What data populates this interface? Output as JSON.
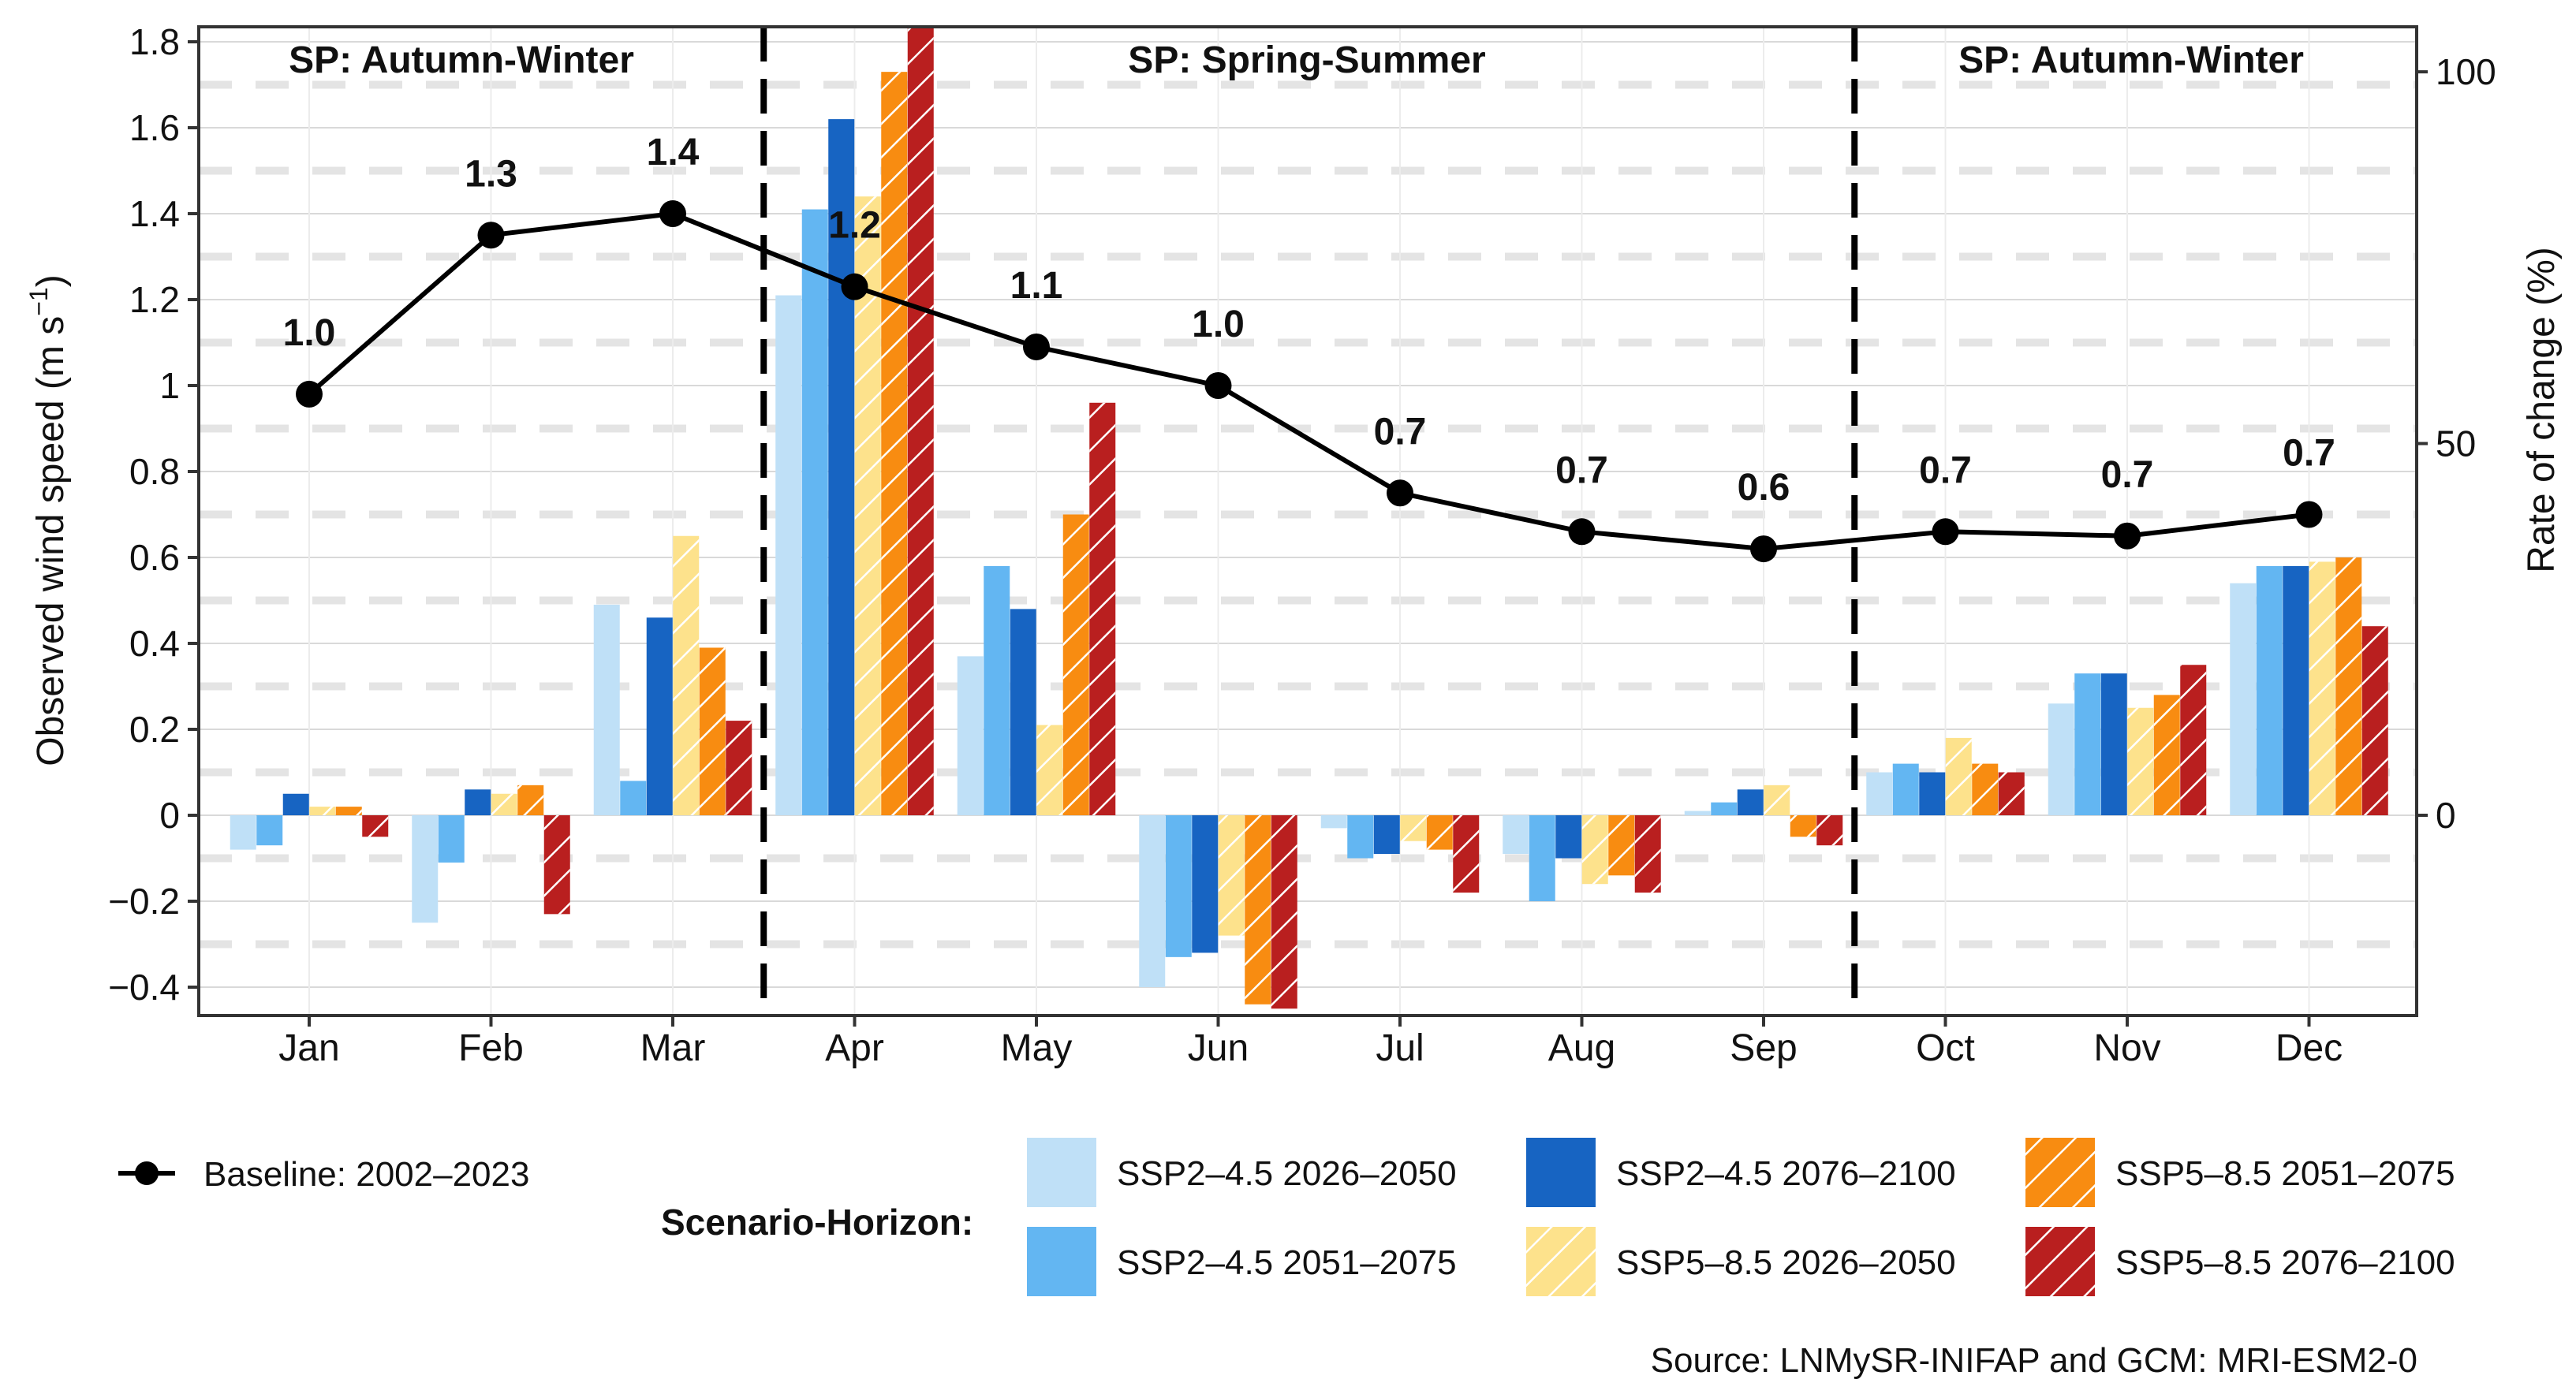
{
  "chart_data": {
    "type": "bar+line",
    "left_axis": {
      "label": "Observed wind speed (m s",
      "label_unit_sup": "−1",
      "label_close": ")",
      "ylim": [
        -0.45,
        1.85
      ],
      "ticks": [
        -0.4,
        -0.2,
        0,
        0.2,
        0.4,
        0.6,
        0.8,
        1,
        1.2,
        1.4,
        1.6,
        1.8
      ],
      "tick_labels": [
        "−0.4",
        "−0.2",
        "0",
        "0.2",
        "0.4",
        "0.6",
        "0.8",
        "1",
        "1.2",
        "1.4",
        "1.6",
        "1.8"
      ]
    },
    "right_axis": {
      "label": "Rate of change (%)",
      "ticks": [
        0,
        50,
        100
      ],
      "tick_labels": [
        "0",
        "50",
        "100"
      ],
      "scale_pct_per_ms": 57.8
    },
    "categories": [
      "Jan",
      "Feb",
      "Mar",
      "Apr",
      "May",
      "Jun",
      "Jul",
      "Aug",
      "Sep",
      "Oct",
      "Nov",
      "Dec"
    ],
    "baseline": {
      "name": "Baseline: 2002–2023",
      "values": [
        0.98,
        1.35,
        1.4,
        1.23,
        1.09,
        1.0,
        0.75,
        0.66,
        0.62,
        0.66,
        0.65,
        0.7
      ],
      "labels": [
        "1.0",
        "1.3",
        "1.4",
        "1.2",
        "1.1",
        "1.0",
        "0.7",
        "0.7",
        "0.6",
        "0.7",
        "0.7",
        "0.7"
      ]
    },
    "series": [
      {
        "name": "SSP2–4.5 2026–2050",
        "color": "#bfe0f7",
        "hatch": false,
        "values": [
          -0.08,
          -0.25,
          0.49,
          1.21,
          0.37,
          -0.4,
          -0.03,
          -0.09,
          0.01,
          0.1,
          0.26,
          0.54
        ]
      },
      {
        "name": "SSP2–4.5 2051–2075",
        "color": "#63b6f2",
        "hatch": false,
        "values": [
          -0.07,
          -0.11,
          0.08,
          1.41,
          0.58,
          -0.33,
          -0.1,
          -0.2,
          0.03,
          0.12,
          0.33,
          0.58
        ]
      },
      {
        "name": "SSP2–4.5 2076–2100",
        "color": "#1764c2",
        "hatch": false,
        "values": [
          0.05,
          0.06,
          0.46,
          1.62,
          0.48,
          -0.32,
          -0.09,
          -0.1,
          0.06,
          0.1,
          0.33,
          0.58
        ]
      },
      {
        "name": "SSP5–8.5 2026–2050",
        "color": "#fde28c",
        "hatch": true,
        "values": [
          0.02,
          0.05,
          0.65,
          1.44,
          0.21,
          -0.28,
          -0.06,
          -0.16,
          0.07,
          0.18,
          0.25,
          0.59
        ]
      },
      {
        "name": "SSP5–8.5 2051–2075",
        "color": "#f88c11",
        "hatch": true,
        "values": [
          0.02,
          0.07,
          0.39,
          1.73,
          0.7,
          -0.44,
          -0.08,
          -0.14,
          -0.05,
          0.12,
          0.28,
          0.6
        ]
      },
      {
        "name": "SSP5–8.5 2076–2100",
        "color": "#b91f1f",
        "hatch": true,
        "values": [
          -0.05,
          -0.23,
          0.22,
          1.85,
          0.96,
          -0.45,
          -0.18,
          -0.18,
          -0.07,
          0.1,
          0.35,
          0.44
        ]
      }
    ],
    "season_labels": [
      "SP: Autumn-Winter",
      "SP: Spring-Summer",
      "SP: Autumn-Winter"
    ],
    "legend_title": "Scenario-Horizon:",
    "source": "Source: LNMySR-INIFAP and GCM: MRI-ESM2-0"
  }
}
